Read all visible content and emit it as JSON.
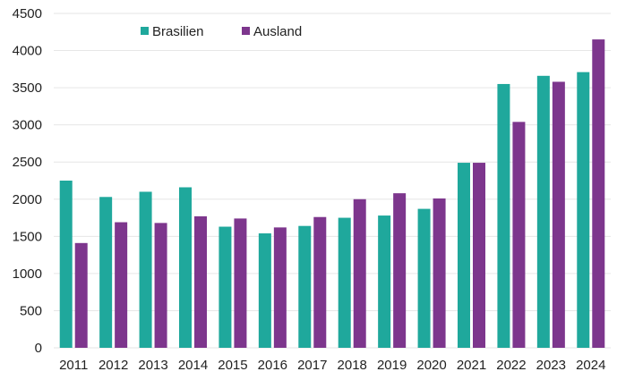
{
  "chart_data": {
    "type": "bar",
    "categories": [
      "2011",
      "2012",
      "2013",
      "2014",
      "2015",
      "2016",
      "2017",
      "2018",
      "2019",
      "2020",
      "2021",
      "2022",
      "2023",
      "2024"
    ],
    "series": [
      {
        "name": "Brasilien",
        "color": "#1fa89c",
        "values": [
          2250,
          2030,
          2100,
          2160,
          1630,
          1540,
          1640,
          1750,
          1780,
          1870,
          2490,
          3550,
          3660,
          3710
        ]
      },
      {
        "name": "Ausland",
        "color": "#7d368d",
        "values": [
          1410,
          1690,
          1680,
          1770,
          1740,
          1620,
          1760,
          2000,
          2080,
          2010,
          2490,
          3040,
          3580,
          4150
        ]
      }
    ],
    "yticks": [
      "0",
      "500",
      "1000",
      "1500",
      "2000",
      "2500",
      "3000",
      "3500",
      "4000",
      "4500"
    ],
    "ylim": [
      0,
      4500
    ],
    "grid": true,
    "legend_position": "top-left",
    "title": "",
    "xlabel": "",
    "ylabel": ""
  }
}
